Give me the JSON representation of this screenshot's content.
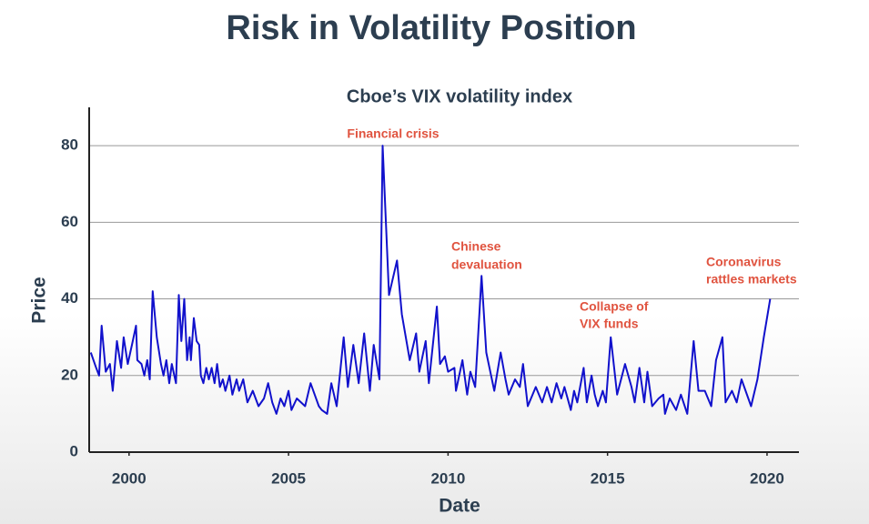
{
  "chart_data": {
    "type": "line",
    "title": "Risk in Volatility Position",
    "subtitle": "Cboe’s VIX volatility index",
    "x_label": "Date",
    "y_label": "Price",
    "color": "#1111cc",
    "grid": true,
    "xlim": [
      1998.75,
      2021
    ],
    "xticks": [
      2000,
      2005,
      2010,
      2015,
      2020
    ],
    "ylim": [
      0,
      90
    ],
    "yticks": [
      0,
      20,
      40,
      60,
      80
    ],
    "x": [
      1998.8,
      1998.97,
      1999.06,
      1999.14,
      1999.27,
      1999.4,
      1999.49,
      1999.62,
      1999.75,
      1999.83,
      1999.96,
      2000.09,
      2000.22,
      2000.26,
      2000.39,
      2000.48,
      2000.57,
      2000.65,
      2000.74,
      2000.87,
      2001.0,
      2001.08,
      2001.17,
      2001.26,
      2001.34,
      2001.47,
      2001.56,
      2001.64,
      2001.73,
      2001.82,
      2001.9,
      2001.94,
      2002.03,
      2002.12,
      2002.2,
      2002.25,
      2002.33,
      2002.42,
      2002.5,
      2002.59,
      2002.68,
      2002.76,
      2002.85,
      2002.94,
      2003.02,
      2003.15,
      2003.24,
      2003.37,
      2003.45,
      2003.58,
      2003.71,
      2003.88,
      2004.06,
      2004.23,
      2004.36,
      2004.49,
      2004.62,
      2004.75,
      2004.87,
      2005.0,
      2005.09,
      2005.26,
      2005.52,
      2005.69,
      2005.95,
      2006.04,
      2006.21,
      2006.34,
      2006.51,
      2006.73,
      2006.86,
      2007.03,
      2007.2,
      2007.37,
      2007.55,
      2007.67,
      2007.85,
      2007.95,
      2008.15,
      2008.4,
      2008.55,
      2008.8,
      2009.0,
      2009.1,
      2009.3,
      2009.4,
      2009.65,
      2009.75,
      2009.9,
      2010.0,
      2010.2,
      2010.25,
      2010.45,
      2010.6,
      2010.7,
      2010.85,
      2011.05,
      2011.2,
      2011.45,
      2011.65,
      2011.8,
      2011.9,
      2012.1,
      2012.25,
      2012.35,
      2012.5,
      2012.75,
      2012.95,
      2013.1,
      2013.25,
      2013.4,
      2013.55,
      2013.65,
      2013.85,
      2013.95,
      2014.05,
      2014.25,
      2014.35,
      2014.5,
      2014.6,
      2014.7,
      2014.85,
      2014.95,
      2015.1,
      2015.3,
      2015.55,
      2015.75,
      2015.85,
      2016.0,
      2016.15,
      2016.25,
      2016.4,
      2016.6,
      2016.75,
      2016.8,
      2016.95,
      2017.15,
      2017.3,
      2017.5,
      2017.7,
      2017.85,
      2018.05,
      2018.25,
      2018.4,
      2018.6,
      2018.7,
      2018.9,
      2019.05,
      2019.2,
      2019.5,
      2019.7,
      2019.9,
      2020.1
    ],
    "values": [
      26,
      22,
      20,
      33,
      21,
      23,
      16,
      29,
      22,
      30,
      23,
      28,
      33,
      24,
      23,
      20,
      24,
      19,
      42,
      30,
      23,
      20,
      24,
      18,
      23,
      18,
      41,
      29,
      40,
      24,
      30,
      24,
      35,
      29,
      28,
      20,
      18,
      22,
      19,
      22,
      18,
      23,
      17,
      19,
      16,
      20,
      15,
      19,
      16,
      19,
      13,
      16,
      12,
      14,
      18,
      13,
      10,
      14,
      12,
      16,
      11,
      14,
      12,
      18,
      12,
      11,
      10,
      18,
      12,
      30,
      17,
      28,
      18,
      31,
      16,
      28,
      19,
      80,
      41,
      50,
      36,
      24,
      31,
      21,
      29,
      18,
      38,
      23,
      25,
      21,
      22,
      16,
      24,
      15,
      21,
      17,
      46,
      26,
      16,
      26,
      19,
      15,
      19,
      17,
      23,
      12,
      17,
      13,
      17,
      13,
      18,
      14,
      17,
      11,
      16,
      13,
      22,
      13,
      20,
      15,
      12,
      16,
      13,
      30,
      15,
      23,
      17,
      13,
      22,
      13,
      21,
      12,
      14,
      15,
      10,
      14,
      11,
      15,
      10,
      29,
      16,
      16,
      12,
      24,
      30,
      13,
      16,
      13,
      19,
      12,
      19,
      30,
      40
    ],
    "annotations": [
      {
        "lines": [
          "Financial crisis"
        ]
      },
      {
        "lines": [
          "Chinese",
          "devaluation"
        ]
      },
      {
        "lines": [
          "Collapse of",
          "VIX funds"
        ]
      },
      {
        "lines": [
          "Coronavirus",
          "rattles markets"
        ]
      }
    ]
  }
}
